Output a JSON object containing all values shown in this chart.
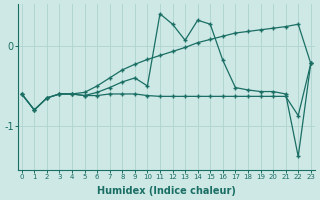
{
  "xlabel": "Humidex (Indice chaleur)",
  "bg_color": "#cde8e5",
  "grid_color": "#b2d6d2",
  "line_color": "#1a6e64",
  "x": [
    0,
    1,
    2,
    3,
    4,
    5,
    6,
    7,
    8,
    9,
    10,
    11,
    12,
    13,
    14,
    15,
    16,
    17,
    18,
    19,
    20,
    21,
    22,
    23
  ],
  "line1_y": [
    -0.6,
    -0.8,
    -0.65,
    -0.6,
    -0.6,
    -0.62,
    -0.58,
    -0.52,
    -0.45,
    -0.4,
    -0.5,
    0.4,
    0.27,
    0.07,
    0.32,
    0.27,
    -0.18,
    -0.52,
    -0.55,
    -0.57,
    -0.57,
    -0.6,
    -1.38,
    -0.22
  ],
  "line2_y": [
    -0.6,
    -0.8,
    -0.65,
    -0.6,
    -0.6,
    -0.62,
    -0.62,
    -0.6,
    -0.6,
    -0.6,
    -0.62,
    -0.63,
    -0.63,
    -0.63,
    -0.63,
    -0.63,
    -0.63,
    -0.63,
    -0.63,
    -0.63,
    -0.63,
    -0.63,
    -0.87,
    -0.22
  ],
  "line3_y": [
    -0.6,
    -0.8,
    -0.65,
    -0.6,
    -0.6,
    -0.58,
    -0.5,
    -0.4,
    -0.3,
    -0.23,
    -0.17,
    -0.12,
    -0.07,
    -0.02,
    0.04,
    0.08,
    0.12,
    0.16,
    0.18,
    0.2,
    0.22,
    0.24,
    0.27,
    -0.22
  ],
  "xlim": [
    -0.3,
    23.3
  ],
  "ylim": [
    -1.55,
    0.52
  ],
  "yticks": [
    0,
    -1
  ],
  "xticks": [
    0,
    1,
    2,
    3,
    4,
    5,
    6,
    7,
    8,
    9,
    10,
    11,
    12,
    13,
    14,
    15,
    16,
    17,
    18,
    19,
    20,
    21,
    22,
    23
  ]
}
